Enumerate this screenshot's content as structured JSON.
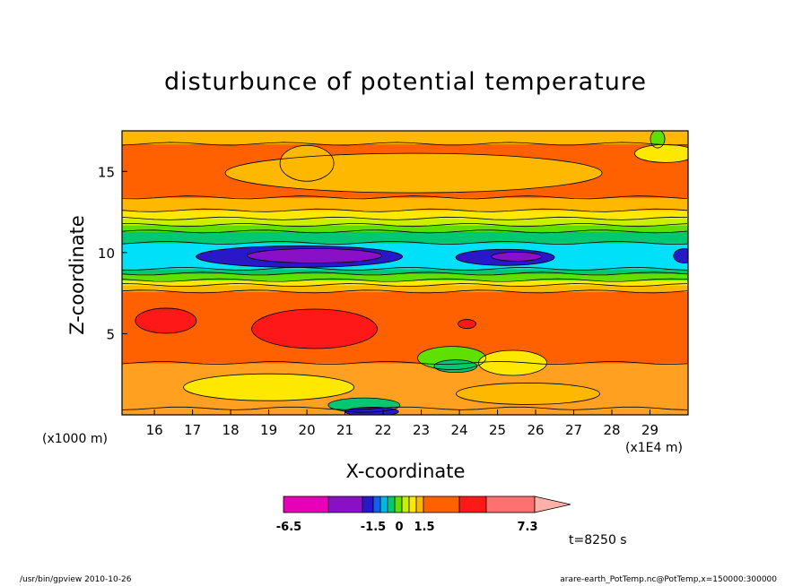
{
  "title": "disturbunce of potential temperature",
  "chart_data": {
    "type": "heatmap",
    "title": "disturbunce of potential temperature",
    "xlabel": "X-coordinate",
    "ylabel": "Z-coordinate",
    "x_unit_left": "(x1000 m)",
    "x_unit_right": "(x1E4 m)",
    "x_ticks": [
      "16",
      "17",
      "18",
      "19",
      "20",
      "21",
      "22",
      "23",
      "24",
      "25",
      "26",
      "27",
      "28",
      "29"
    ],
    "y_ticks": [
      "5",
      "10",
      "15"
    ],
    "xlim": [
      15.15,
      30
    ],
    "ylim": [
      0,
      17.5
    ],
    "colorbar": {
      "labels": [
        "-6.5",
        "-1.5",
        "0",
        "1.5",
        "7.3"
      ],
      "colors": [
        "#e800b8",
        "#8a10c8",
        "#2818c8",
        "#1060f0",
        "#00b8e8",
        "#00c870",
        "#60e000",
        "#c8f000",
        "#ffe800",
        "#ffb800",
        "#ff6000",
        "#ff1818",
        "#ff7070",
        "#ffb0a8"
      ]
    },
    "bands": [
      {
        "z": [
          0,
          0.4
        ],
        "color": "#ffa020"
      },
      {
        "z": [
          0.4,
          3.2
        ],
        "color": "#ffa020"
      },
      {
        "z": [
          3.2,
          7.6
        ],
        "color": "#ff6000"
      },
      {
        "z": [
          7.6,
          8.0
        ],
        "color": "#ffb800"
      },
      {
        "z": [
          8.0,
          8.3
        ],
        "color": "#ffe800"
      },
      {
        "z": [
          8.3,
          8.7
        ],
        "color": "#60e000"
      },
      {
        "z": [
          8.7,
          9.0
        ],
        "color": "#00c870"
      },
      {
        "z": [
          9.0,
          10.6
        ],
        "color": "#00e0f8"
      },
      {
        "z": [
          10.6,
          11.3
        ],
        "color": "#00c870"
      },
      {
        "z": [
          11.3,
          11.7
        ],
        "color": "#60e000"
      },
      {
        "z": [
          11.7,
          12.1
        ],
        "color": "#c8f000"
      },
      {
        "z": [
          12.1,
          12.6
        ],
        "color": "#ffe800"
      },
      {
        "z": [
          12.6,
          13.4
        ],
        "color": "#ffb800"
      },
      {
        "z": [
          13.4,
          16.7
        ],
        "color": "#ff6000"
      },
      {
        "z": [
          16.7,
          17.5
        ],
        "color": "#ffb800"
      }
    ]
  },
  "time_label": "t=8250 s",
  "footer_left": "/usr/bin/gpview   2010-10-26",
  "footer_right": "arare-earth_PotTemp.nc@PotTemp,x=150000:300000"
}
